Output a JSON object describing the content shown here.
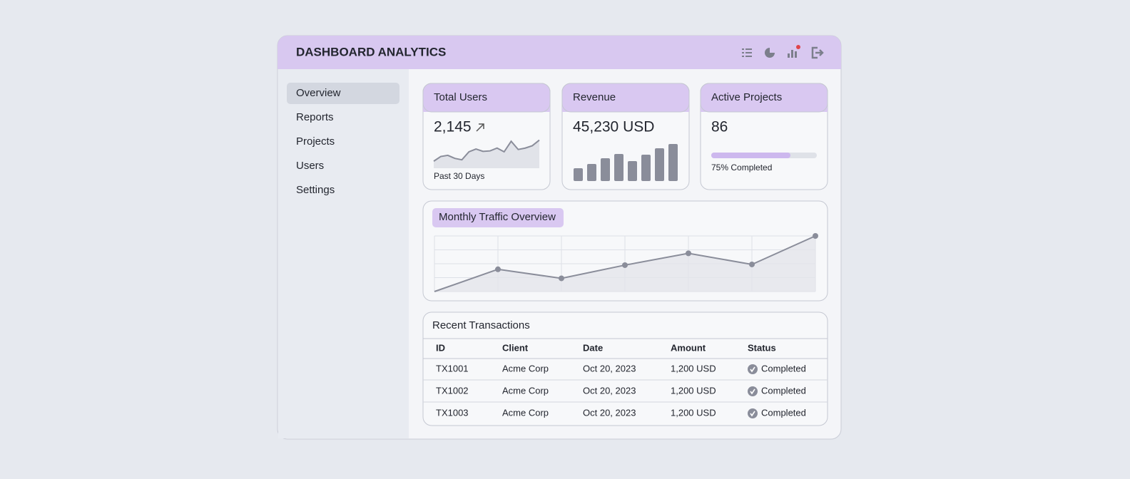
{
  "header": {
    "title": "DASHBOARD ANALYTICS"
  },
  "sidebar": {
    "items": [
      "Overview",
      "Reports",
      "Projects",
      "Users",
      "Settings"
    ]
  },
  "cards": [
    {
      "title": "Total Users",
      "value": "2,145",
      "caption": "Past 30 Days",
      "trend": [
        3,
        5,
        5.5,
        4.2,
        3.6,
        7,
        8.2,
        7.2,
        7.4,
        8.6,
        7,
        11.5,
        8,
        8.6,
        9.6,
        12
      ],
      "ylim": [
        0,
        14
      ]
    },
    {
      "title": "Revenue",
      "value": "45,230 USD",
      "bars": [
        18,
        24,
        32,
        38,
        28,
        37,
        46,
        52
      ],
      "ylim": [
        0,
        52
      ]
    },
    {
      "title": "Active Projects",
      "value": "86",
      "progress": 75,
      "progress_label": "75% Completed"
    }
  ],
  "traffic": {
    "title": "Monthly Traffic Overview",
    "values": [
      0,
      1.6,
      0.95,
      1.9,
      2.75,
      1.95,
      4
    ],
    "ylim": [
      0,
      4
    ]
  },
  "transactions": {
    "title": "Recent Transactions",
    "columns": [
      "ID",
      "Client",
      "Date",
      "Amount",
      "Status"
    ],
    "rows": [
      [
        "TX1001",
        "Acme Corp",
        "Oct 20, 2023",
        "1,200 USD",
        "Completed"
      ],
      [
        "TX1002",
        "Acme Corp",
        "Oct 20, 2023",
        "1,200 USD",
        "Completed"
      ],
      [
        "TX1003",
        "Acme Corp",
        "Oct 20, 2023",
        "1,200 USD",
        "Completed"
      ]
    ]
  }
}
